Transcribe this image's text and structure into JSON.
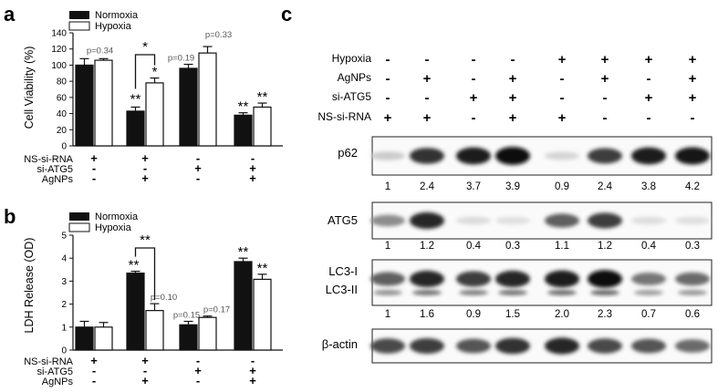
{
  "panels": {
    "a": "a",
    "b": "b",
    "c": "c"
  },
  "legend": {
    "normoxia": "Normoxia",
    "hypoxia": "Hypoxia"
  },
  "colors": {
    "normoxia": "#111111",
    "hypoxia": "#ffffff",
    "stroke": "#111111",
    "pvalue": "#555555"
  },
  "chart_data": [
    {
      "type": "bar",
      "panel": "a",
      "ylabel": "Cell Viability (%)",
      "ylim": [
        0,
        140
      ],
      "yticks": [
        0,
        20,
        40,
        60,
        80,
        100,
        120,
        140
      ],
      "groups": 4,
      "series": [
        {
          "name": "Normoxia",
          "values": [
            100,
            43,
            96,
            38
          ],
          "errors": [
            8,
            5,
            5,
            3
          ]
        },
        {
          "name": "Hypoxia",
          "values": [
            106,
            78,
            115,
            48
          ],
          "errors": [
            2,
            6,
            8,
            5
          ]
        }
      ],
      "conditions": [
        {
          "label": "NS-si-RNA",
          "marks": [
            "+",
            "+",
            "-",
            "-"
          ]
        },
        {
          "label": "si-ATG5",
          "marks": [
            "-",
            "-",
            "+",
            "+"
          ]
        },
        {
          "label": "AgNPs",
          "marks": [
            "-",
            "+",
            "-",
            "+"
          ]
        }
      ],
      "annotations": {
        "pvalues": [
          "p=0.34",
          "p=0.19",
          "p=0.33"
        ],
        "stars": [
          "**",
          "*",
          "*",
          "**",
          "**"
        ]
      }
    },
    {
      "type": "bar",
      "panel": "b",
      "ylabel": "LDH Release (OD)",
      "ylim": [
        0,
        5
      ],
      "yticks": [
        0,
        1,
        2,
        3,
        4,
        5
      ],
      "groups": 4,
      "series": [
        {
          "name": "Normoxia",
          "values": [
            1.0,
            3.35,
            1.1,
            3.85
          ],
          "errors": [
            0.25,
            0.08,
            0.15,
            0.15
          ]
        },
        {
          "name": "Hypoxia",
          "values": [
            1.0,
            1.72,
            1.42,
            3.08
          ],
          "errors": [
            0.2,
            0.3,
            0.06,
            0.22
          ]
        }
      ],
      "conditions": [
        {
          "label": "NS-si-RNA",
          "marks": [
            "+",
            "+",
            "-",
            "-"
          ]
        },
        {
          "label": "si-ATG5",
          "marks": [
            "-",
            "-",
            "+",
            "+"
          ]
        },
        {
          "label": "AgNPs",
          "marks": [
            "-",
            "+",
            "-",
            "+"
          ]
        }
      ],
      "annotations": {
        "pvalues": [
          "p=0.10",
          "p=0.15",
          "p=0.17"
        ],
        "stars": [
          "**",
          "**",
          "**",
          "**"
        ]
      }
    },
    {
      "type": "table",
      "panel": "c",
      "treatments": [
        {
          "label": "Hypoxia",
          "marks": [
            "-",
            "-",
            "-",
            "-",
            "+",
            "+",
            "+",
            "+"
          ]
        },
        {
          "label": "AgNPs",
          "marks": [
            "-",
            "+",
            "-",
            "+",
            "-",
            "+",
            "-",
            "+"
          ]
        },
        {
          "label": "si-ATG5",
          "marks": [
            "-",
            "-",
            "+",
            "+",
            "-",
            "-",
            "+",
            "+"
          ]
        },
        {
          "label": "NS-si-RNA",
          "marks": [
            "+",
            "+",
            "-",
            "+",
            "+",
            "-",
            "-",
            "-"
          ]
        }
      ],
      "blots": [
        {
          "label": "p62",
          "values": [
            "1",
            "2.4",
            "3.7",
            "3.9",
            "0.9",
            "2.4",
            "3.8",
            "4.2"
          ],
          "intensity": [
            0.12,
            0.8,
            0.9,
            0.97,
            0.08,
            0.75,
            0.9,
            0.92
          ]
        },
        {
          "label": "ATG5",
          "values": [
            "1",
            "1.2",
            "0.4",
            "0.3",
            "1.1",
            "1.2",
            "0.4",
            "0.3"
          ],
          "intensity": [
            0.4,
            0.85,
            0.05,
            0.03,
            0.6,
            0.75,
            0.04,
            0.03
          ]
        },
        {
          "label": "LC3-I",
          "label2": "LC3-II",
          "values": [
            "1",
            "1.6",
            "0.9",
            "1.5",
            "2.0",
            "2.3",
            "0.7",
            "0.6"
          ],
          "intensity": [
            0.6,
            0.85,
            0.75,
            0.85,
            0.9,
            0.95,
            0.5,
            0.55
          ]
        },
        {
          "label": "β-actin",
          "values": [],
          "intensity": [
            0.7,
            0.75,
            0.65,
            0.8,
            0.85,
            0.7,
            0.65,
            0.55
          ]
        }
      ]
    }
  ]
}
